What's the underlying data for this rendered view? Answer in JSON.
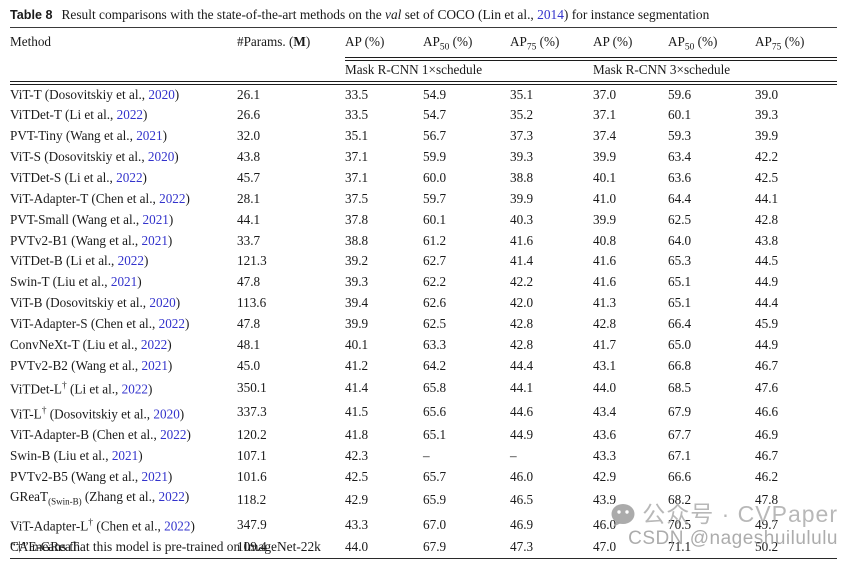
{
  "caption": {
    "label": "Table 8",
    "text_1": "Result comparisons with the state-of-the-art methods on the ",
    "val_word": "val",
    "text_2": " set of COCO (Lin et al., ",
    "year_link": "2014",
    "text_3": ") for instance segmentation"
  },
  "header": {
    "method": "Method",
    "params_pre": "#Params. (",
    "params_bold": "M",
    "params_post": ")",
    "ap_cols": [
      {
        "main": "AP",
        "sub": "",
        "unit": " (%)"
      },
      {
        "main": "AP",
        "sub": "50",
        "unit": " (%)"
      },
      {
        "main": "AP",
        "sub": "75",
        "unit": " (%)"
      },
      {
        "main": "AP",
        "sub": "",
        "unit": " (%)"
      },
      {
        "main": "AP",
        "sub": "50",
        "unit": " (%)"
      },
      {
        "main": "AP",
        "sub": "75",
        "unit": " (%)"
      }
    ],
    "group1": "Mask R-CNN 1×schedule",
    "group2": "Mask R-CNN 3×schedule"
  },
  "rows": [
    {
      "method": "ViT-T",
      "dagger": "",
      "subscript": "",
      "cite_pre": "(Dosovitskiy et al., ",
      "year": "2020",
      "cite_post": ")",
      "params": "26.1",
      "vals": [
        "33.5",
        "54.9",
        "35.1",
        "37.0",
        "59.6",
        "39.0"
      ]
    },
    {
      "method": "ViTDet-T",
      "dagger": "",
      "subscript": "",
      "cite_pre": "(Li et al., ",
      "year": "2022",
      "cite_post": ")",
      "params": "26.6",
      "vals": [
        "33.5",
        "54.7",
        "35.2",
        "37.1",
        "60.1",
        "39.3"
      ]
    },
    {
      "method": "PVT-Tiny",
      "dagger": "",
      "subscript": "",
      "cite_pre": "(Wang et al., ",
      "year": "2021",
      "cite_post": ")",
      "params": "32.0",
      "vals": [
        "35.1",
        "56.7",
        "37.3",
        "37.4",
        "59.3",
        "39.9"
      ]
    },
    {
      "method": "ViT-S",
      "dagger": "",
      "subscript": "",
      "cite_pre": "(Dosovitskiy et al., ",
      "year": "2020",
      "cite_post": ")",
      "params": "43.8",
      "vals": [
        "37.1",
        "59.9",
        "39.3",
        "39.9",
        "63.4",
        "42.2"
      ]
    },
    {
      "method": "ViTDet-S",
      "dagger": "",
      "subscript": "",
      "cite_pre": "(Li et al., ",
      "year": "2022",
      "cite_post": ")",
      "params": "45.7",
      "vals": [
        "37.1",
        "60.0",
        "38.8",
        "40.1",
        "63.6",
        "42.5"
      ]
    },
    {
      "method": "ViT-Adapter-T",
      "dagger": "",
      "subscript": "",
      "cite_pre": "(Chen et al., ",
      "year": "2022",
      "cite_post": ")",
      "params": "28.1",
      "vals": [
        "37.5",
        "59.7",
        "39.9",
        "41.0",
        "64.4",
        "44.1"
      ]
    },
    {
      "method": "PVT-Small",
      "dagger": "",
      "subscript": "",
      "cite_pre": "(Wang et al., ",
      "year": "2021",
      "cite_post": ")",
      "params": "44.1",
      "vals": [
        "37.8",
        "60.1",
        "40.3",
        "39.9",
        "62.5",
        "42.8"
      ]
    },
    {
      "method": "PVTv2-B1",
      "dagger": "",
      "subscript": "",
      "cite_pre": "(Wang et al., ",
      "year": "2021",
      "cite_post": ")",
      "params": "33.7",
      "vals": [
        "38.8",
        "61.2",
        "41.6",
        "40.8",
        "64.0",
        "43.8"
      ]
    },
    {
      "method": "ViTDet-B",
      "dagger": "",
      "subscript": "",
      "cite_pre": "(Li et al., ",
      "year": "2022",
      "cite_post": ")",
      "params": "121.3",
      "vals": [
        "39.2",
        "62.7",
        "41.4",
        "41.6",
        "65.3",
        "44.5"
      ]
    },
    {
      "method": "Swin-T",
      "dagger": "",
      "subscript": "",
      "cite_pre": "(Liu et al., ",
      "year": "2021",
      "cite_post": ")",
      "params": "47.8",
      "vals": [
        "39.3",
        "62.2",
        "42.2",
        "41.6",
        "65.1",
        "44.9"
      ]
    },
    {
      "method": "ViT-B",
      "dagger": "",
      "subscript": "",
      "cite_pre": "(Dosovitskiy et al., ",
      "year": "2020",
      "cite_post": ")",
      "params": "113.6",
      "vals": [
        "39.4",
        "62.6",
        "42.0",
        "41.3",
        "65.1",
        "44.4"
      ]
    },
    {
      "method": "ViT-Adapter-S",
      "dagger": "",
      "subscript": "",
      "cite_pre": "(Chen et al., ",
      "year": "2022",
      "cite_post": ")",
      "params": "47.8",
      "vals": [
        "39.9",
        "62.5",
        "42.8",
        "42.8",
        "66.4",
        "45.9"
      ]
    },
    {
      "method": "ConvNeXt-T",
      "dagger": "",
      "subscript": "",
      "cite_pre": "(Liu et al., ",
      "year": "2022",
      "cite_post": ")",
      "params": "48.1",
      "vals": [
        "40.1",
        "63.3",
        "42.8",
        "41.7",
        "65.0",
        "44.9"
      ]
    },
    {
      "method": "PVTv2-B2",
      "dagger": "",
      "subscript": "",
      "cite_pre": "(Wang et al., ",
      "year": "2021",
      "cite_post": ")",
      "params": "45.0",
      "vals": [
        "41.2",
        "64.2",
        "44.4",
        "43.1",
        "66.8",
        "46.7"
      ]
    },
    {
      "method": "ViTDet-L",
      "dagger": "†",
      "subscript": "",
      "cite_pre": "(Li et al., ",
      "year": "2022",
      "cite_post": ")",
      "params": "350.1",
      "vals": [
        "41.4",
        "65.8",
        "44.1",
        "44.0",
        "68.5",
        "47.6"
      ]
    },
    {
      "method": "ViT-L",
      "dagger": "†",
      "subscript": "",
      "cite_pre": "(Dosovitskiy et al., ",
      "year": "2020",
      "cite_post": ")",
      "params": "337.3",
      "vals": [
        "41.5",
        "65.6",
        "44.6",
        "43.4",
        "67.9",
        "46.6"
      ]
    },
    {
      "method": "ViT-Adapter-B",
      "dagger": "",
      "subscript": "",
      "cite_pre": "(Chen et al., ",
      "year": "2022",
      "cite_post": ")",
      "params": "120.2",
      "vals": [
        "41.8",
        "65.1",
        "44.9",
        "43.6",
        "67.7",
        "46.9"
      ]
    },
    {
      "method": "Swin-B",
      "dagger": "",
      "subscript": "",
      "cite_pre": "(Liu et al., ",
      "year": "2021",
      "cite_post": ")",
      "params": "107.1",
      "vals": [
        "42.3",
        "–",
        "–",
        "43.3",
        "67.1",
        "46.7"
      ]
    },
    {
      "method": "PVTv2-B5",
      "dagger": "",
      "subscript": "",
      "cite_pre": "(Wang et al., ",
      "year": "2021",
      "cite_post": ")",
      "params": "101.6",
      "vals": [
        "42.5",
        "65.7",
        "46.0",
        "42.9",
        "66.6",
        "46.2"
      ]
    },
    {
      "method": "GReaT",
      "dagger": "",
      "subscript": "(Swin-B)",
      "cite_pre": "(Zhang et al., ",
      "year": "2022",
      "cite_post": ")",
      "params": "118.2",
      "vals": [
        "42.9",
        "65.9",
        "46.5",
        "43.9",
        "68.2",
        "47.8"
      ]
    },
    {
      "method": "ViT-Adapter-L",
      "dagger": "†",
      "subscript": "",
      "cite_pre": "(Chen et al., ",
      "year": "2022",
      "cite_post": ")",
      "params": "347.9",
      "vals": [
        "43.3",
        "67.0",
        "46.9",
        "46.0",
        "70.5",
        "49.7"
      ]
    },
    {
      "method": "CAE-GReaT",
      "dagger": "",
      "subscript": "",
      "cite_pre": "",
      "year": "",
      "cite_post": "",
      "params": "109.4",
      "vals": [
        "44.0",
        "67.9",
        "47.3",
        "47.0",
        "71.1",
        "50.2"
      ]
    }
  ],
  "footnote": "“†” means that this model is pre-trained on ImageNet-22k",
  "watermark": {
    "line1": "公众号 · CVPaper",
    "line2": "CSDN @nageshuilululu"
  },
  "colors": {
    "link_blue": "#3333cc",
    "text": "#1a1a1a",
    "watermark_gray": "#acacac"
  }
}
